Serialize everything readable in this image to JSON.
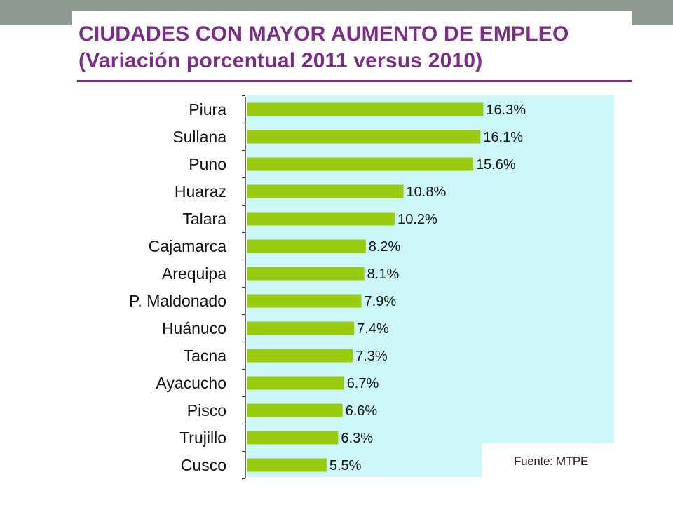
{
  "title_line1": "CIUDADES CON MAYOR AUMENTO DE EMPLEO",
  "title_line2": "(Variación porcentual 2011 versus 2010)",
  "source": "Fuente: MTPE",
  "colors": {
    "bar": "#99cc11",
    "plot_background": "#ccf7f9",
    "title": "#7b2d86",
    "top_band": "#8e9a92"
  },
  "chart_data": {
    "type": "bar",
    "orientation": "horizontal",
    "title": "CIUDADES CON MAYOR AUMENTO DE EMPLEO",
    "subtitle": "(Variación porcentual 2011 versus 2010)",
    "categories": [
      "Piura",
      "Sullana",
      "Puno",
      "Huaraz",
      "Talara",
      "Cajamarca",
      "Arequipa",
      "P. Maldonado",
      "Huánuco",
      "Tacna",
      "Ayacucho",
      "Pisco",
      "Trujillo",
      "Cusco"
    ],
    "values": [
      16.3,
      16.1,
      15.6,
      10.8,
      10.2,
      8.2,
      8.1,
      7.9,
      7.4,
      7.3,
      6.7,
      6.6,
      6.3,
      5.5
    ],
    "value_labels": [
      "16.3%",
      "16.1%",
      "15.6%",
      "10.8%",
      "10.2%",
      "8.2%",
      "8.1%",
      "7.9%",
      "7.4%",
      "7.3%",
      "6.7%",
      "6.6%",
      "6.3%",
      "5.5%"
    ],
    "unit": "%",
    "xlim": [
      0,
      20
    ],
    "grid": false,
    "legend": "none"
  }
}
